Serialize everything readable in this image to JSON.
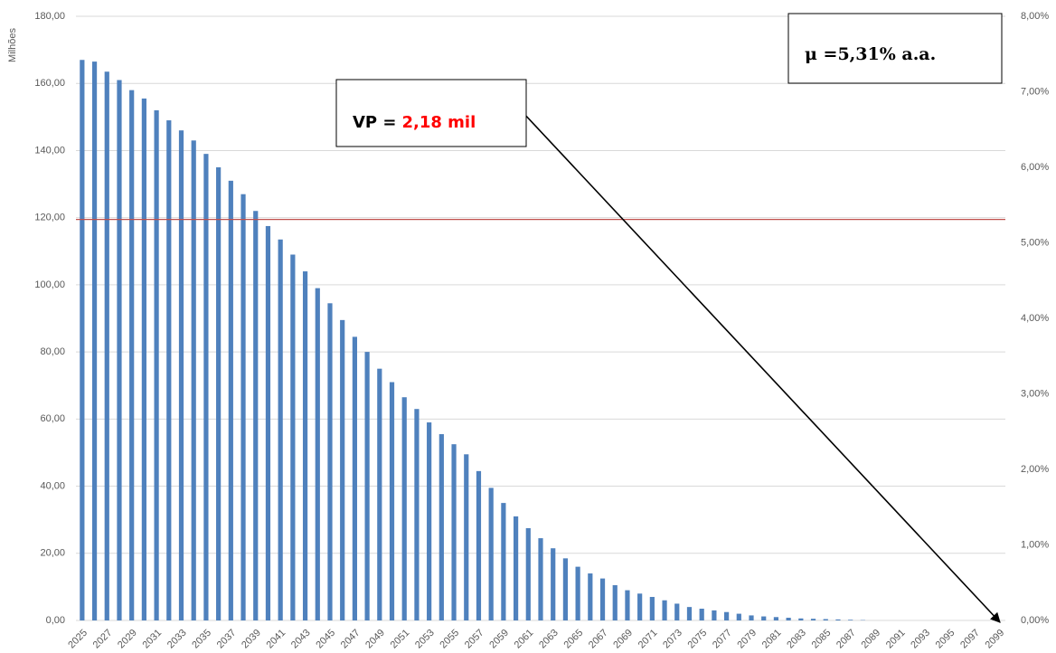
{
  "chart_data": {
    "type": "bar",
    "y_axis_label": "Milhões",
    "categories": [
      "2025",
      null,
      "2027",
      null,
      "2029",
      null,
      "2031",
      null,
      "2033",
      null,
      "2035",
      null,
      "2037",
      null,
      "2039",
      null,
      "2041",
      null,
      "2043",
      null,
      "2045",
      null,
      "2047",
      null,
      "2049",
      null,
      "2051",
      null,
      "2053",
      null,
      "2055",
      null,
      "2057",
      null,
      "2059",
      null,
      "2061",
      null,
      "2063",
      null,
      "2065",
      null,
      "2067",
      null,
      "2069",
      null,
      "2071",
      null,
      "2073",
      null,
      "2075",
      null,
      "2077",
      null,
      "2079",
      null,
      "2081",
      null,
      "2083",
      null,
      "2085",
      null,
      "2087",
      null,
      "2089",
      null,
      "2091",
      null,
      "2093",
      null,
      "2095",
      null,
      "2097",
      null,
      "2099"
    ],
    "values": [
      167,
      166.5,
      163.5,
      161,
      158,
      155.5,
      152,
      149,
      146,
      143,
      139,
      135,
      131,
      127,
      122,
      117.5,
      113.5,
      109,
      104,
      99,
      94.5,
      89.5,
      84.5,
      80,
      75,
      71,
      66.5,
      63,
      59,
      55.5,
      52.5,
      49.5,
      44.5,
      39.5,
      35,
      31,
      27.5,
      24.5,
      21.5,
      18.5,
      16,
      14,
      12.5,
      10.5,
      9,
      8,
      7,
      6,
      5,
      4,
      3.5,
      3,
      2.5,
      2,
      1.5,
      1.2,
      1,
      0.8,
      0.6,
      0.5,
      0.4,
      0.3,
      0.2,
      0.1,
      0,
      0,
      0,
      0,
      0,
      0,
      0,
      0,
      0,
      0,
      0
    ],
    "color": "#4f81bd",
    "ylim": [
      0,
      180
    ],
    "yticks": [
      {
        "value": 0,
        "label": "0,00"
      },
      {
        "value": 20,
        "label": "20,00"
      },
      {
        "value": 40,
        "label": "40,00"
      },
      {
        "value": 60,
        "label": "60,00"
      },
      {
        "value": 80,
        "label": "80,00"
      },
      {
        "value": 100,
        "label": "100,00"
      },
      {
        "value": 120,
        "label": "120,00"
      },
      {
        "value": 140,
        "label": "140,00"
      },
      {
        "value": 160,
        "label": "160,00"
      },
      {
        "value": 180,
        "label": "180,00"
      }
    ],
    "y2lim": [
      0,
      8
    ],
    "y2ticks": [
      {
        "value": 0,
        "label": "0,00%"
      },
      {
        "value": 1,
        "label": "1,00%"
      },
      {
        "value": 2,
        "label": "2,00%"
      },
      {
        "value": 3,
        "label": "3,00%"
      },
      {
        "value": 4,
        "label": "4,00%"
      },
      {
        "value": 5,
        "label": "5,00%"
      },
      {
        "value": 6,
        "label": "6,00%"
      },
      {
        "value": 7,
        "label": "7,00%"
      },
      {
        "value": 8,
        "label": "8,00%"
      }
    ],
    "grid": true,
    "reference_line": {
      "value": 5.31,
      "axis": "y2",
      "color": "#c0504d"
    },
    "mu_annotation": "μ =5,31% a.a.",
    "vp_annotation": {
      "prefix": "VP =",
      "value": "2,18 mil",
      "value_color": "#ff0000"
    }
  }
}
